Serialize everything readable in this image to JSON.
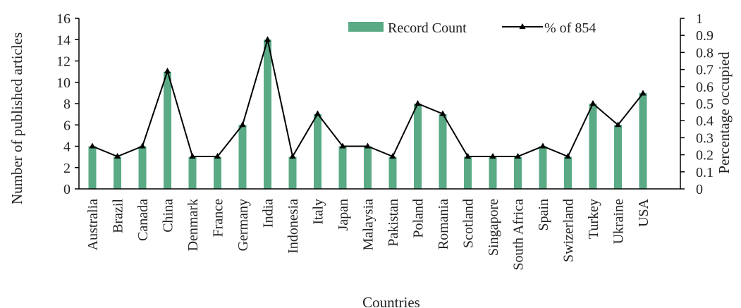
{
  "chart_data": {
    "type": "bar",
    "title": "",
    "xlabel": "Countries",
    "ylabel": "Number of published articles",
    "y2label": "Percentage occupied",
    "categories": [
      "Australia",
      "Brazil",
      "Canada",
      "China",
      "Denmark",
      "France",
      "Germany",
      "India",
      "Indonesia",
      "Italy",
      "Japan",
      "Malaysia",
      "Pakistan",
      "Poland",
      "Romania",
      "Scotland",
      "Singapore",
      "South Africa",
      "Spain",
      "Swizerland",
      "Turkey",
      "Ukraine",
      "USA"
    ],
    "series": [
      {
        "name": "Record Count",
        "type": "bar",
        "axis": "left",
        "color": "#5aaa86",
        "values": [
          4,
          3,
          4,
          11,
          3,
          3,
          6,
          14,
          3,
          7,
          4,
          4,
          3,
          8,
          7,
          3,
          3,
          3,
          4,
          3,
          8,
          6,
          9
        ]
      },
      {
        "name": "% of 854",
        "type": "line",
        "axis": "right",
        "color": "#000000",
        "marker": "triangle",
        "values": [
          0.25,
          0.19,
          0.25,
          0.69,
          0.19,
          0.19,
          0.375,
          0.875,
          0.19,
          0.44,
          0.25,
          0.25,
          0.19,
          0.5,
          0.44,
          0.19,
          0.19,
          0.19,
          0.25,
          0.19,
          0.5,
          0.375,
          0.56
        ]
      }
    ],
    "ylim": [
      0,
      16
    ],
    "yticks": [
      "0",
      "2",
      "4",
      "6",
      "8",
      "10",
      "12",
      "14",
      "16"
    ],
    "y2lim": [
      0,
      1
    ],
    "y2ticks": [
      "0",
      "0.1",
      "0.2",
      "0.3",
      "0.4",
      "0.5",
      "0.6",
      "0.7",
      "0.8",
      "0.9",
      "1"
    ],
    "grid": false,
    "legend_position": "top-right"
  }
}
